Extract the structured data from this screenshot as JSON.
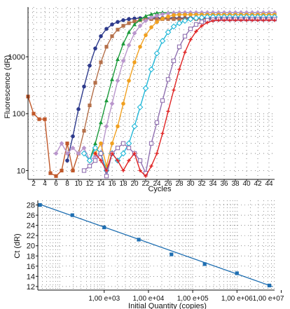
{
  "chart_data": [
    {
      "type": "line",
      "xlabel": "Cycles",
      "ylabel": "Fluorescence (dR)",
      "x_ticks": [
        2,
        4,
        6,
        8,
        10,
        12,
        14,
        16,
        18,
        20,
        22,
        24,
        26,
        28,
        30,
        32,
        34,
        36,
        38,
        40,
        42,
        44
      ],
      "x_tick_labels": [
        "2",
        "4",
        "6",
        "8",
        "10",
        "12",
        "14",
        "16",
        "18",
        "20",
        "22",
        "24",
        "26",
        "28",
        "30",
        "32",
        "34",
        "36",
        "38",
        "40",
        "42",
        "44"
      ],
      "y_ticks": [
        10,
        100,
        1000
      ],
      "y_tick_labels": [
        "10",
        "100",
        "1000"
      ],
      "xlim": [
        1,
        45
      ],
      "ylim": [
        7,
        7500
      ],
      "yscale": "log",
      "grid": "dotted",
      "series": [
        {
          "color": "#c0582a",
          "marker": "square",
          "x": [
            1,
            2,
            3,
            4,
            5,
            6,
            7,
            8,
            9,
            10
          ],
          "y": [
            200,
            100,
            80,
            80,
            9,
            8,
            10,
            30,
            10,
            20
          ]
        },
        {
          "color": "#2d3a8c",
          "marker": "circle",
          "x": [
            8,
            9,
            10,
            11,
            12,
            13,
            14,
            15,
            16,
            17,
            18,
            19,
            20,
            21,
            22,
            23,
            24,
            25,
            26,
            27,
            28,
            29,
            30,
            31,
            32,
            33,
            34,
            35,
            36,
            37,
            38,
            39,
            40,
            41,
            42,
            43,
            44,
            45
          ],
          "y": [
            15,
            40,
            120,
            300,
            700,
            1400,
            2300,
            3100,
            3700,
            4100,
            4400,
            4600,
            4700,
            4750,
            4800,
            4800,
            4800,
            4800,
            4800,
            4800,
            4800,
            4800,
            4800,
            4800,
            4800,
            4800,
            4800,
            4800,
            4800,
            4800,
            4800,
            4800,
            4800,
            4800,
            4800,
            4800,
            4800,
            4800
          ]
        },
        {
          "color": "#b5704a",
          "marker": "square",
          "x": [
            10,
            11,
            12,
            13,
            14,
            15,
            16,
            17,
            18,
            19,
            20,
            21,
            22,
            23,
            24,
            25,
            26,
            27,
            28,
            29,
            30,
            31,
            32,
            33,
            34,
            35,
            36,
            37,
            38,
            39,
            40,
            41,
            42,
            43,
            44,
            45
          ],
          "y": [
            20,
            50,
            140,
            350,
            800,
            1500,
            2300,
            3000,
            3500,
            3900,
            4200,
            4400,
            4500,
            4600,
            4600,
            4600,
            4600,
            4600,
            4600,
            4600,
            4600,
            4600,
            4600,
            4600,
            4600,
            4600,
            4600,
            4600,
            4600,
            4600,
            4600,
            4600,
            4600,
            4600,
            4600,
            4600
          ]
        },
        {
          "color": "#1a9a3a",
          "marker": "triangle",
          "x": [
            12,
            13,
            14,
            15,
            16,
            17,
            18,
            19,
            20,
            21,
            22,
            23,
            24,
            25,
            26,
            27,
            28,
            29,
            30,
            31,
            32,
            33,
            34,
            35,
            36,
            37,
            38,
            39,
            40,
            41,
            42,
            43,
            44,
            45
          ],
          "y": [
            15,
            30,
            70,
            170,
            400,
            900,
            1700,
            2700,
            3700,
            4500,
            5200,
            5600,
            5900,
            6000,
            6000,
            6000,
            6000,
            6000,
            6000,
            6000,
            6000,
            6000,
            6000,
            6000,
            6000,
            6000,
            6000,
            6000,
            6000,
            6000,
            6000,
            6000,
            6000,
            6000
          ]
        },
        {
          "color": "#b996cc",
          "marker": "diamond",
          "x": [
            6,
            7,
            8,
            9,
            10,
            11,
            12,
            13,
            14,
            15,
            16,
            17,
            18,
            19,
            20,
            21,
            22,
            23,
            24,
            25,
            26,
            27,
            28,
            29,
            30,
            31,
            32,
            33,
            34,
            35,
            36,
            37,
            38,
            39,
            40,
            41,
            42,
            43,
            44,
            45
          ],
          "y": [
            20,
            30,
            20,
            25,
            20,
            25,
            15,
            18,
            20,
            60,
            150,
            380,
            850,
            1600,
            2600,
            3500,
            4300,
            4900,
            5300,
            5600,
            5800,
            5900,
            6000,
            6000,
            6000,
            6000,
            6000,
            6000,
            6000,
            6000,
            6000,
            6000,
            6000,
            6000,
            6000,
            6000,
            6000,
            6000,
            6000,
            6000
          ]
        },
        {
          "color": "#f0a020",
          "marker": "circle",
          "x": [
            13,
            14,
            15,
            16,
            17,
            18,
            19,
            20,
            21,
            22,
            23,
            24,
            25,
            26,
            27,
            28,
            29,
            30,
            31,
            32,
            33,
            34,
            35,
            36,
            37,
            38,
            39,
            40,
            41,
            42,
            43,
            44,
            45
          ],
          "y": [
            20,
            30,
            12,
            30,
            60,
            150,
            380,
            800,
            1500,
            2400,
            3300,
            4100,
            4700,
            5100,
            5400,
            5500,
            5500,
            5500,
            5500,
            5500,
            5500,
            5500,
            5500,
            5500,
            5500,
            5500,
            5500,
            5500,
            5500,
            5500,
            5500,
            5500,
            5500
          ]
        },
        {
          "color": "#22b8d8",
          "marker": "diamond-open",
          "x": [
            11,
            12,
            13,
            14,
            15,
            16,
            17,
            18,
            19,
            20,
            21,
            22,
            23,
            24,
            25,
            26,
            27,
            28,
            29,
            30,
            31,
            32,
            33,
            34,
            35,
            36,
            37,
            38,
            39,
            40,
            41,
            42,
            43,
            44,
            45
          ],
          "y": [
            20,
            15,
            25,
            20,
            10,
            20,
            15,
            20,
            30,
            60,
            130,
            280,
            600,
            1150,
            1900,
            2700,
            3400,
            3900,
            4300,
            4600,
            4800,
            4900,
            5000,
            5000,
            5000,
            5000,
            5000,
            5000,
            5000,
            5000,
            5000,
            5000,
            5000,
            5000,
            5000
          ]
        },
        {
          "color": "#9070b0",
          "marker": "square-open",
          "x": [
            11,
            12,
            13,
            14,
            15,
            16,
            17,
            18,
            19,
            20,
            21,
            22,
            23,
            24,
            25,
            26,
            27,
            28,
            29,
            30,
            31,
            32,
            33,
            34,
            35,
            36,
            37,
            38,
            39,
            40,
            41,
            42,
            43,
            44,
            45
          ],
          "y": [
            10,
            12,
            15,
            20,
            8,
            20,
            25,
            30,
            25,
            20,
            15,
            9,
            30,
            70,
            170,
            400,
            850,
            1500,
            2300,
            3100,
            3700,
            4100,
            4400,
            4500,
            4600,
            4600,
            4600,
            4600,
            4600,
            4600,
            4600,
            4600,
            4600,
            4600,
            4600
          ]
        },
        {
          "color": "#e02424",
          "marker": "cross",
          "x": [
            13,
            14,
            15,
            16,
            17,
            18,
            19,
            20,
            21,
            22,
            23,
            24,
            25,
            26,
            27,
            28,
            29,
            30,
            31,
            32,
            33,
            34,
            35,
            36,
            37,
            38,
            39,
            40,
            41,
            42,
            43,
            44,
            45
          ],
          "y": [
            20,
            15,
            10,
            20,
            15,
            10,
            15,
            20,
            10,
            8,
            12,
            20,
            45,
            110,
            260,
            600,
            1200,
            2000,
            2800,
            3500,
            4000,
            4300,
            4400,
            4400,
            4400,
            4400,
            4400,
            4400,
            4400,
            4400,
            4400,
            4400,
            4400
          ]
        }
      ]
    },
    {
      "type": "scatter",
      "xlabel": "Initial Quantity (copies)",
      "ylabel": "Ct (dR)",
      "xscale": "log",
      "xlim": [
        1.5,
        6.85
      ],
      "ylim": [
        11.3,
        28.9
      ],
      "x_ticks": [
        3,
        4,
        5,
        6,
        7
      ],
      "x_tick_labels": [
        "1,00 e+03",
        "1,00 e+04",
        "1,00 e+05",
        "1,00 e+06",
        "1,00 e+07"
      ],
      "y_ticks": [
        12,
        14,
        16,
        18,
        20,
        22,
        24,
        26,
        28
      ],
      "y_tick_labels": [
        "12",
        "14",
        "16",
        "18",
        "20",
        "22",
        "24",
        "26",
        "28"
      ],
      "grid": "dotted",
      "points": [
        {
          "x": 1.55,
          "y": 28.0
        },
        {
          "x": 2.28,
          "y": 26.0
        },
        {
          "x": 3.0,
          "y": 23.6
        },
        {
          "x": 3.78,
          "y": 21.2
        },
        {
          "x": 4.52,
          "y": 18.3
        },
        {
          "x": 5.27,
          "y": 16.4
        },
        {
          "x": 6.0,
          "y": 14.6
        },
        {
          "x": 6.73,
          "y": 12.2
        }
      ],
      "fit": {
        "x": [
          1.52,
          6.8
        ],
        "y": [
          28.2,
          12.0
        ]
      },
      "point_color": "#1f6fb2",
      "line_color": "#1f6fb2"
    }
  ]
}
